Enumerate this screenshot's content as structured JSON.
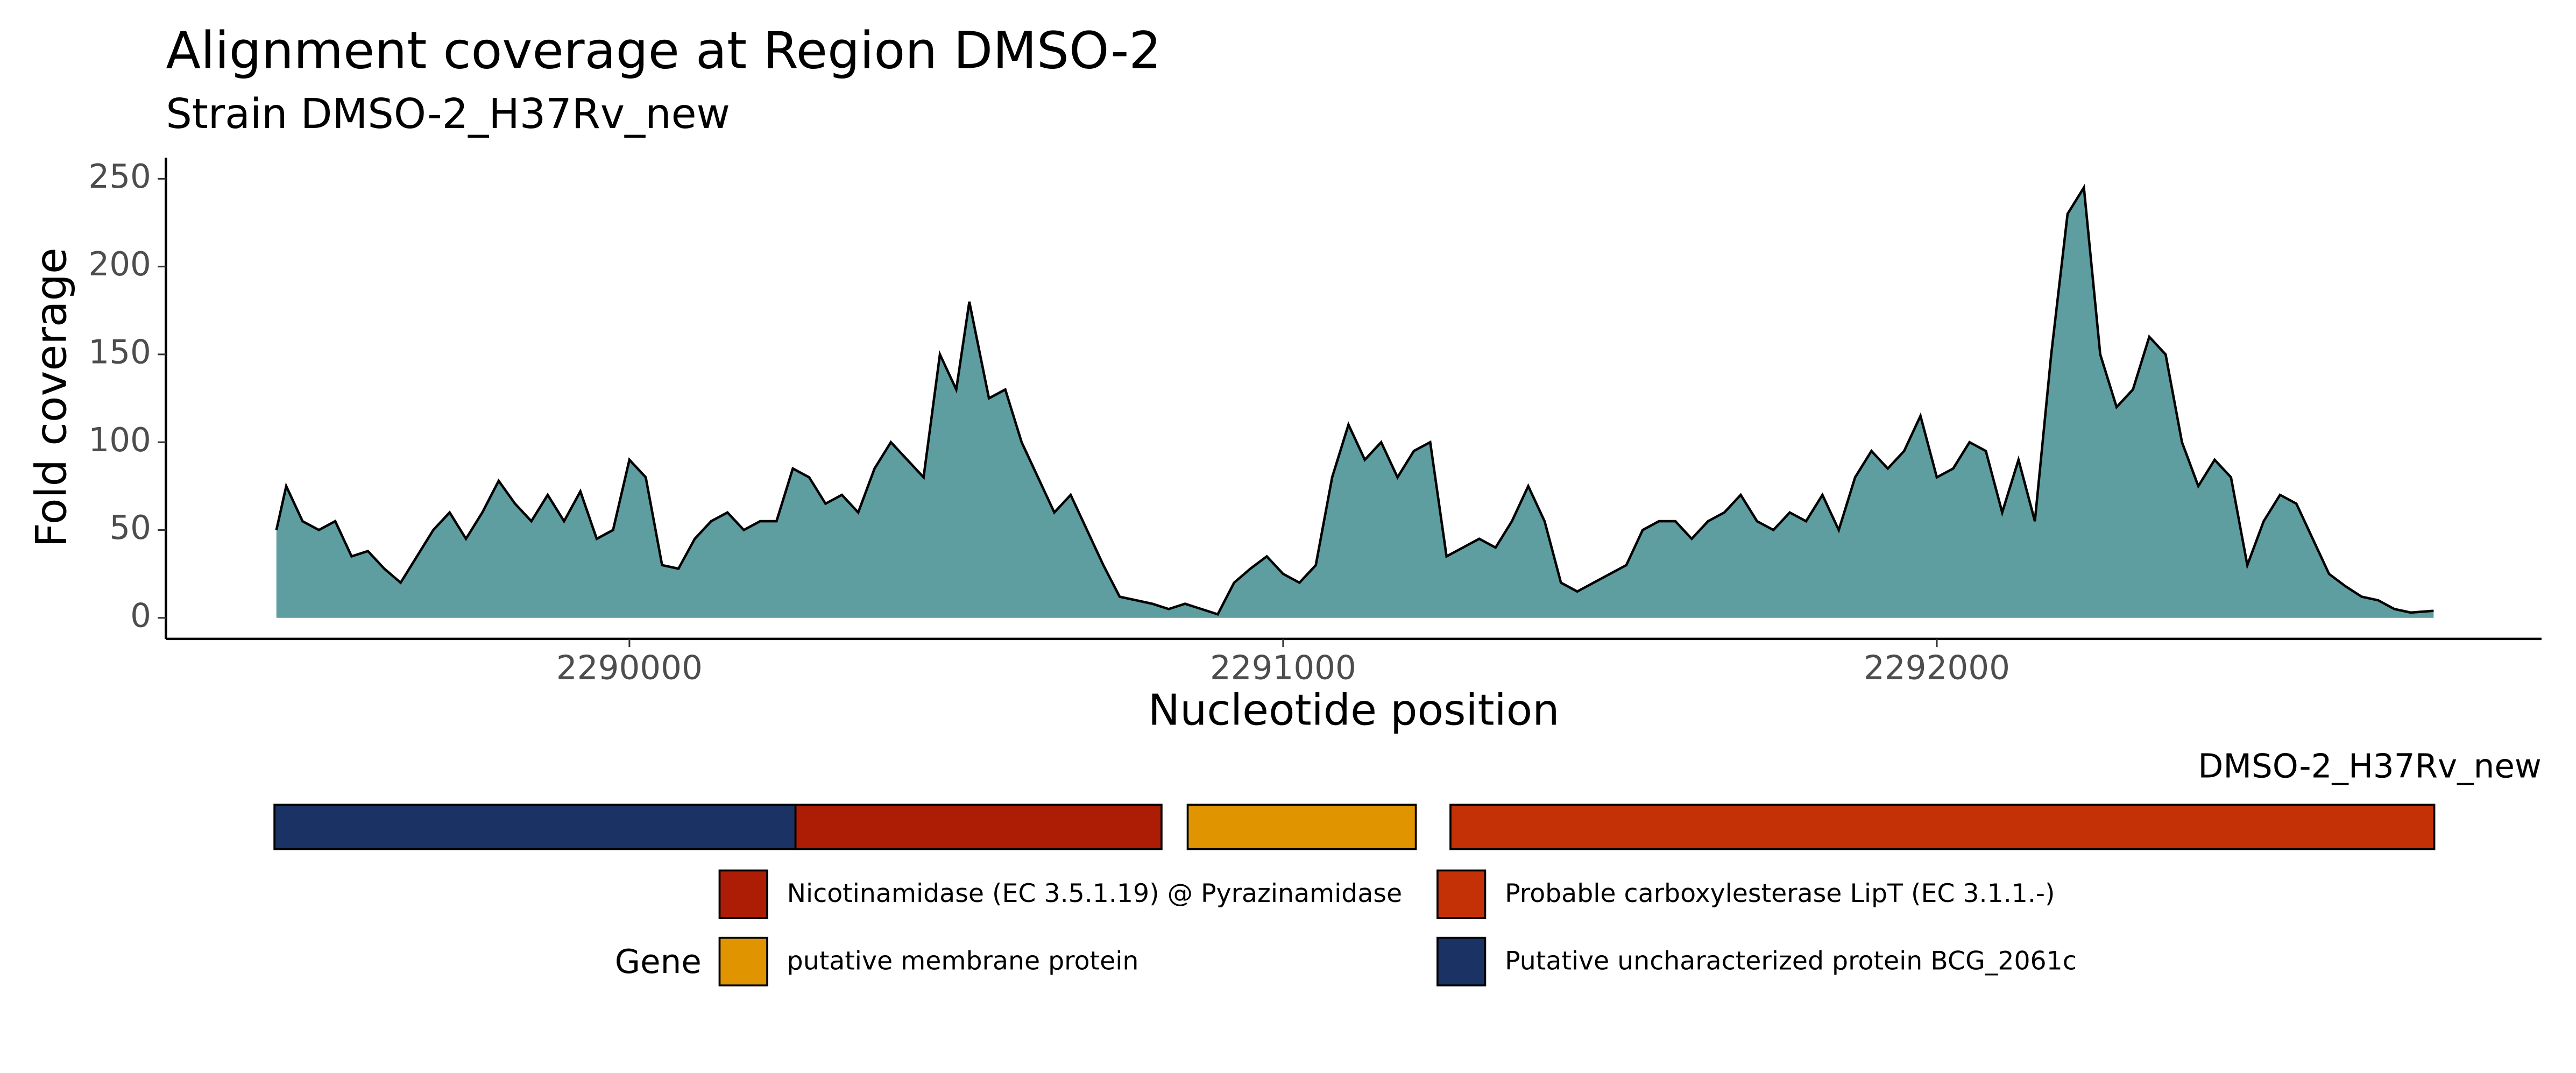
{
  "chart_data": [
    {
      "type": "area",
      "title": "Alignment coverage at Region DMSO-2",
      "subtitle": "Strain DMSO-2_H37Rv_new",
      "xlabel": "Nucleotide position",
      "ylabel": "Fold coverage",
      "color": "#5f9ea0",
      "line_color": "#000000",
      "xlim": [
        2289291,
        2292925
      ],
      "ylim": [
        -12,
        262
      ],
      "xticks": [
        2290000,
        2291000,
        2292000
      ],
      "yticks": [
        0,
        50,
        100,
        150,
        200,
        250
      ],
      "grid": false,
      "x": [
        2289460,
        2289475,
        2289500,
        2289525,
        2289550,
        2289575,
        2289600,
        2289625,
        2289650,
        2289675,
        2289700,
        2289725,
        2289750,
        2289775,
        2289800,
        2289825,
        2289850,
        2289875,
        2289900,
        2289925,
        2289950,
        2289975,
        2290000,
        2290025,
        2290050,
        2290075,
        2290100,
        2290125,
        2290150,
        2290175,
        2290200,
        2290225,
        2290250,
        2290275,
        2290300,
        2290325,
        2290350,
        2290375,
        2290400,
        2290425,
        2290450,
        2290475,
        2290500,
        2290520,
        2290550,
        2290575,
        2290600,
        2290625,
        2290650,
        2290675,
        2290700,
        2290725,
        2290750,
        2290775,
        2290800,
        2290825,
        2290850,
        2290875,
        2290900,
        2290925,
        2290950,
        2290975,
        2291000,
        2291025,
        2291050,
        2291075,
        2291100,
        2291125,
        2291150,
        2291175,
        2291200,
        2291225,
        2291250,
        2291275,
        2291300,
        2291325,
        2291350,
        2291375,
        2291400,
        2291425,
        2291450,
        2291475,
        2291500,
        2291525,
        2291550,
        2291575,
        2291600,
        2291625,
        2291650,
        2291675,
        2291700,
        2291725,
        2291750,
        2291775,
        2291800,
        2291825,
        2291850,
        2291875,
        2291900,
        2291925,
        2291950,
        2291975,
        2292000,
        2292025,
        2292050,
        2292075,
        2292100,
        2292125,
        2292150,
        2292175,
        2292200,
        2292225,
        2292250,
        2292275,
        2292300,
        2292325,
        2292350,
        2292375,
        2292400,
        2292425,
        2292450,
        2292475,
        2292500,
        2292525,
        2292550,
        2292575,
        2292600,
        2292625,
        2292650,
        2292675,
        2292700,
        2292725,
        2292760
      ],
      "values": [
        50,
        75,
        55,
        50,
        55,
        35,
        38,
        28,
        20,
        35,
        50,
        60,
        45,
        60,
        78,
        65,
        55,
        70,
        55,
        72,
        45,
        50,
        90,
        80,
        30,
        28,
        45,
        55,
        60,
        50,
        55,
        55,
        85,
        80,
        65,
        70,
        60,
        85,
        100,
        90,
        80,
        150,
        130,
        180,
        125,
        130,
        100,
        80,
        60,
        70,
        50,
        30,
        12,
        10,
        8,
        5,
        8,
        5,
        2,
        20,
        28,
        35,
        25,
        20,
        30,
        80,
        110,
        90,
        100,
        80,
        95,
        100,
        35,
        40,
        45,
        40,
        55,
        75,
        55,
        20,
        15,
        20,
        25,
        30,
        50,
        55,
        55,
        45,
        55,
        60,
        70,
        55,
        50,
        60,
        55,
        70,
        50,
        80,
        95,
        85,
        95,
        115,
        80,
        85,
        100,
        95,
        60,
        90,
        55,
        150,
        230,
        245,
        150,
        120,
        130,
        160,
        150,
        100,
        75,
        90,
        80,
        30,
        55,
        70,
        65,
        45,
        25,
        18,
        12,
        10,
        5,
        3,
        4
      ]
    },
    {
      "type": "gene-track",
      "track_label": "DMSO-2_H37Rv_new",
      "legend_title": "Gene",
      "genes": [
        {
          "name": "Nicotinamidase (EC 3.5.1.19) @ Pyrazinamidase",
          "color": "#ad1c05",
          "start": 2290254,
          "end": 2290814
        },
        {
          "name": "putative membrane protein",
          "color": "#e09500",
          "start": 2290854,
          "end": 2291203
        },
        {
          "name": "Probable carboxylesterase LipT (EC 3.1.1.-)",
          "color": "#c53106",
          "start": 2291256,
          "end": 2292761
        },
        {
          "name": "Putative uncharacterized protein BCG_2061c",
          "color": "#1a3264",
          "start": 2289457,
          "end": 2290254
        }
      ]
    }
  ]
}
